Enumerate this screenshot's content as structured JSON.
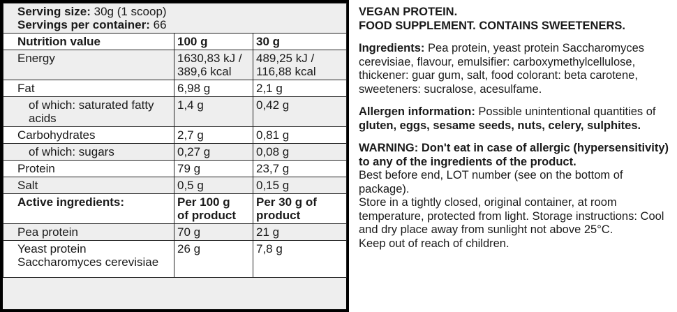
{
  "nutrition": {
    "serving_size_label": "Serving size:",
    "serving_size_value": "30g (1 scoop)",
    "servings_label": "Servings per container:",
    "servings_value": "66",
    "header": {
      "label": "Nutrition value",
      "col1": "100 g",
      "col2": "30 g"
    },
    "energy": {
      "label": "Energy",
      "col1_line1": "1630,83 kJ /",
      "col1_line2": "389,6 kcal",
      "col2_line1": "489,25 kJ /",
      "col2_line2": "116,88 kcal"
    },
    "fat": {
      "label": "Fat",
      "col1": "6,98 g",
      "col2": "2,1 g"
    },
    "sat_fat": {
      "label_line1": "of which: saturated fatty",
      "label_line2": "acids",
      "col1": "1,4 g",
      "col2": "0,42 g"
    },
    "carbs": {
      "label": "Carbohydrates",
      "col1": "2,7 g",
      "col2": "0,81 g"
    },
    "sugars": {
      "label": "of which: sugars",
      "col1": "0,27 g",
      "col2": "0,08 g"
    },
    "protein": {
      "label": "Protein",
      "col1": "79 g",
      "col2": "23,7 g"
    },
    "salt": {
      "label": "Salt",
      "col1": "0,5 g",
      "col2": "0,15 g"
    },
    "active_header": {
      "label": "Active ingredients:",
      "col1_line1": "Per 100 g",
      "col1_line2": "of product",
      "col2_line1": "Per 30 g of",
      "col2_line2": "product"
    },
    "pea": {
      "label": "Pea protein",
      "col1": "70 g",
      "col2": "21 g"
    },
    "yeast": {
      "label_line1": "Yeast protein",
      "label_line2": "Saccharomyces cerevisiae",
      "col1": "26 g",
      "col2": "7,8 g"
    }
  },
  "info": {
    "title_line1": "VEGAN PROTEIN.",
    "title_line2": "FOOD SUPPLEMENT. CONTAINS SWEETENERS.",
    "ingredients_label": "Ingredients:",
    "ingredients_text": " Pea protein, yeast protein Saccharomyces cerevisiae, flavour, emulsifier: carboxymethylcellulose, thickener: guar gum, salt, food colorant: beta carotene, sweeteners: sucralose, acesulfame.",
    "allergen_label": "Allergen information:",
    "allergen_text": " Possible unintentional quantities of ",
    "allergen_list": "gluten, eggs, sesame seeds, nuts, celery, sulphites.",
    "warning": "WARNING: Don't eat in case of allergic (hypersensitivity) to any of the ingredients of the product.",
    "best_before": "Best before end, LOT number (see on the bottom of package).",
    "storage": "Store in a tightly closed, original container, at room temperature, protected from light.  Storage instructions: Cool and dry place away from sunlight not above 25°C.",
    "children": "Keep out of reach of children."
  }
}
